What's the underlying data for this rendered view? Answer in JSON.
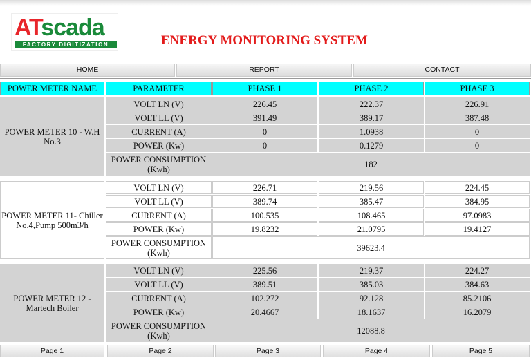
{
  "header": {
    "logo": {
      "brand_a": "AT",
      "brand_b": "scada",
      "tagline": "FACTORY DIGITIZATION"
    },
    "title": "ENERGY MONITORING SYSTEM"
  },
  "nav": [
    "HOME",
    "REPORT",
    "CONTACT"
  ],
  "table": {
    "columns": [
      "POWER METER NAME",
      "PARAMETER",
      "PHASE 1",
      "PHASE 2",
      "PHASE 3"
    ],
    "parameters": [
      "VOLT LN (V)",
      "VOLT LL (V)",
      "CURRENT (A)",
      "POWER (Kw)",
      "POWER CONSUMPTION (Kwh)"
    ],
    "meters": [
      {
        "name": "POWER METER 10 - W.H No.3",
        "rows": [
          [
            "226.45",
            "222.37",
            "226.91"
          ],
          [
            "391.49",
            "389.17",
            "387.48"
          ],
          [
            "0",
            "1.0938",
            "0"
          ],
          [
            "0",
            "0.1279",
            "0"
          ]
        ],
        "consumption": "182"
      },
      {
        "name": "POWER METER 11- Chiller No.4,Pump 500m3/h",
        "rows": [
          [
            "226.71",
            "219.56",
            "224.45"
          ],
          [
            "389.74",
            "385.47",
            "384.95"
          ],
          [
            "100.535",
            "108.465",
            "97.0983"
          ],
          [
            "19.8232",
            "21.0795",
            "19.4127"
          ]
        ],
        "consumption": "39623.4"
      },
      {
        "name": "POWER METER 12 - Martech Boiler",
        "rows": [
          [
            "225.56",
            "219.37",
            "224.27"
          ],
          [
            "389.51",
            "385.03",
            "384.63"
          ],
          [
            "102.272",
            "92.128",
            "85.2106"
          ],
          [
            "20.4667",
            "18.1637",
            "16.2079"
          ]
        ],
        "consumption": "12088.8"
      }
    ]
  },
  "pagination": [
    "Page 1",
    "Page 2",
    "Page 3",
    "Page 4",
    "Page 5"
  ],
  "colors": {
    "header_cell": "#00ffff",
    "title": "#e31b1b",
    "gray_block": "#d3d3d3"
  }
}
